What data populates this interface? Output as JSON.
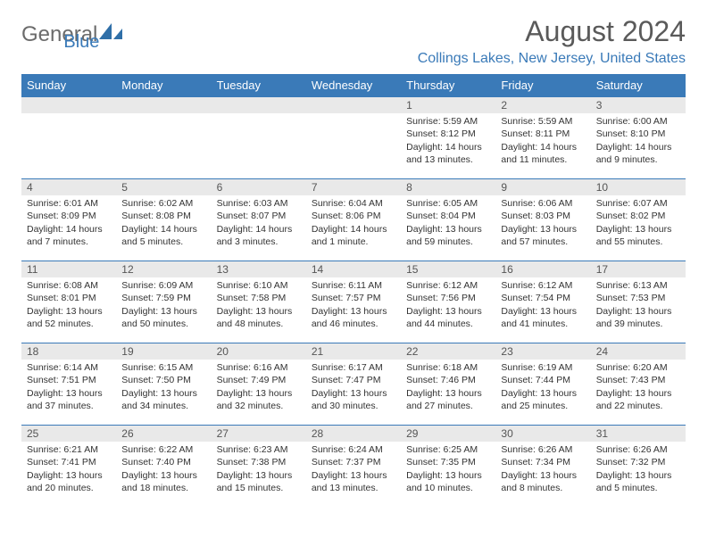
{
  "logo": {
    "text_general": "General",
    "text_blue": "Blue"
  },
  "header": {
    "month_title": "August 2024",
    "location": "Collings Lakes, New Jersey, United States"
  },
  "day_headers": [
    "Sunday",
    "Monday",
    "Tuesday",
    "Wednesday",
    "Thursday",
    "Friday",
    "Saturday"
  ],
  "colors": {
    "accent": "#3a7ab8",
    "header_bg": "#3a7ab8",
    "daynum_bg": "#e9e9e9",
    "text": "#333333",
    "title_text": "#5a5a5a"
  },
  "weeks": [
    [
      {
        "day": "",
        "sunrise": "",
        "sunset": "",
        "daylight": ""
      },
      {
        "day": "",
        "sunrise": "",
        "sunset": "",
        "daylight": ""
      },
      {
        "day": "",
        "sunrise": "",
        "sunset": "",
        "daylight": ""
      },
      {
        "day": "",
        "sunrise": "",
        "sunset": "",
        "daylight": ""
      },
      {
        "day": "1",
        "sunrise": "Sunrise: 5:59 AM",
        "sunset": "Sunset: 8:12 PM",
        "daylight": "Daylight: 14 hours and 13 minutes."
      },
      {
        "day": "2",
        "sunrise": "Sunrise: 5:59 AM",
        "sunset": "Sunset: 8:11 PM",
        "daylight": "Daylight: 14 hours and 11 minutes."
      },
      {
        "day": "3",
        "sunrise": "Sunrise: 6:00 AM",
        "sunset": "Sunset: 8:10 PM",
        "daylight": "Daylight: 14 hours and 9 minutes."
      }
    ],
    [
      {
        "day": "4",
        "sunrise": "Sunrise: 6:01 AM",
        "sunset": "Sunset: 8:09 PM",
        "daylight": "Daylight: 14 hours and 7 minutes."
      },
      {
        "day": "5",
        "sunrise": "Sunrise: 6:02 AM",
        "sunset": "Sunset: 8:08 PM",
        "daylight": "Daylight: 14 hours and 5 minutes."
      },
      {
        "day": "6",
        "sunrise": "Sunrise: 6:03 AM",
        "sunset": "Sunset: 8:07 PM",
        "daylight": "Daylight: 14 hours and 3 minutes."
      },
      {
        "day": "7",
        "sunrise": "Sunrise: 6:04 AM",
        "sunset": "Sunset: 8:06 PM",
        "daylight": "Daylight: 14 hours and 1 minute."
      },
      {
        "day": "8",
        "sunrise": "Sunrise: 6:05 AM",
        "sunset": "Sunset: 8:04 PM",
        "daylight": "Daylight: 13 hours and 59 minutes."
      },
      {
        "day": "9",
        "sunrise": "Sunrise: 6:06 AM",
        "sunset": "Sunset: 8:03 PM",
        "daylight": "Daylight: 13 hours and 57 minutes."
      },
      {
        "day": "10",
        "sunrise": "Sunrise: 6:07 AM",
        "sunset": "Sunset: 8:02 PM",
        "daylight": "Daylight: 13 hours and 55 minutes."
      }
    ],
    [
      {
        "day": "11",
        "sunrise": "Sunrise: 6:08 AM",
        "sunset": "Sunset: 8:01 PM",
        "daylight": "Daylight: 13 hours and 52 minutes."
      },
      {
        "day": "12",
        "sunrise": "Sunrise: 6:09 AM",
        "sunset": "Sunset: 7:59 PM",
        "daylight": "Daylight: 13 hours and 50 minutes."
      },
      {
        "day": "13",
        "sunrise": "Sunrise: 6:10 AM",
        "sunset": "Sunset: 7:58 PM",
        "daylight": "Daylight: 13 hours and 48 minutes."
      },
      {
        "day": "14",
        "sunrise": "Sunrise: 6:11 AM",
        "sunset": "Sunset: 7:57 PM",
        "daylight": "Daylight: 13 hours and 46 minutes."
      },
      {
        "day": "15",
        "sunrise": "Sunrise: 6:12 AM",
        "sunset": "Sunset: 7:56 PM",
        "daylight": "Daylight: 13 hours and 44 minutes."
      },
      {
        "day": "16",
        "sunrise": "Sunrise: 6:12 AM",
        "sunset": "Sunset: 7:54 PM",
        "daylight": "Daylight: 13 hours and 41 minutes."
      },
      {
        "day": "17",
        "sunrise": "Sunrise: 6:13 AM",
        "sunset": "Sunset: 7:53 PM",
        "daylight": "Daylight: 13 hours and 39 minutes."
      }
    ],
    [
      {
        "day": "18",
        "sunrise": "Sunrise: 6:14 AM",
        "sunset": "Sunset: 7:51 PM",
        "daylight": "Daylight: 13 hours and 37 minutes."
      },
      {
        "day": "19",
        "sunrise": "Sunrise: 6:15 AM",
        "sunset": "Sunset: 7:50 PM",
        "daylight": "Daylight: 13 hours and 34 minutes."
      },
      {
        "day": "20",
        "sunrise": "Sunrise: 6:16 AM",
        "sunset": "Sunset: 7:49 PM",
        "daylight": "Daylight: 13 hours and 32 minutes."
      },
      {
        "day": "21",
        "sunrise": "Sunrise: 6:17 AM",
        "sunset": "Sunset: 7:47 PM",
        "daylight": "Daylight: 13 hours and 30 minutes."
      },
      {
        "day": "22",
        "sunrise": "Sunrise: 6:18 AM",
        "sunset": "Sunset: 7:46 PM",
        "daylight": "Daylight: 13 hours and 27 minutes."
      },
      {
        "day": "23",
        "sunrise": "Sunrise: 6:19 AM",
        "sunset": "Sunset: 7:44 PM",
        "daylight": "Daylight: 13 hours and 25 minutes."
      },
      {
        "day": "24",
        "sunrise": "Sunrise: 6:20 AM",
        "sunset": "Sunset: 7:43 PM",
        "daylight": "Daylight: 13 hours and 22 minutes."
      }
    ],
    [
      {
        "day": "25",
        "sunrise": "Sunrise: 6:21 AM",
        "sunset": "Sunset: 7:41 PM",
        "daylight": "Daylight: 13 hours and 20 minutes."
      },
      {
        "day": "26",
        "sunrise": "Sunrise: 6:22 AM",
        "sunset": "Sunset: 7:40 PM",
        "daylight": "Daylight: 13 hours and 18 minutes."
      },
      {
        "day": "27",
        "sunrise": "Sunrise: 6:23 AM",
        "sunset": "Sunset: 7:38 PM",
        "daylight": "Daylight: 13 hours and 15 minutes."
      },
      {
        "day": "28",
        "sunrise": "Sunrise: 6:24 AM",
        "sunset": "Sunset: 7:37 PM",
        "daylight": "Daylight: 13 hours and 13 minutes."
      },
      {
        "day": "29",
        "sunrise": "Sunrise: 6:25 AM",
        "sunset": "Sunset: 7:35 PM",
        "daylight": "Daylight: 13 hours and 10 minutes."
      },
      {
        "day": "30",
        "sunrise": "Sunrise: 6:26 AM",
        "sunset": "Sunset: 7:34 PM",
        "daylight": "Daylight: 13 hours and 8 minutes."
      },
      {
        "day": "31",
        "sunrise": "Sunrise: 6:26 AM",
        "sunset": "Sunset: 7:32 PM",
        "daylight": "Daylight: 13 hours and 5 minutes."
      }
    ]
  ]
}
